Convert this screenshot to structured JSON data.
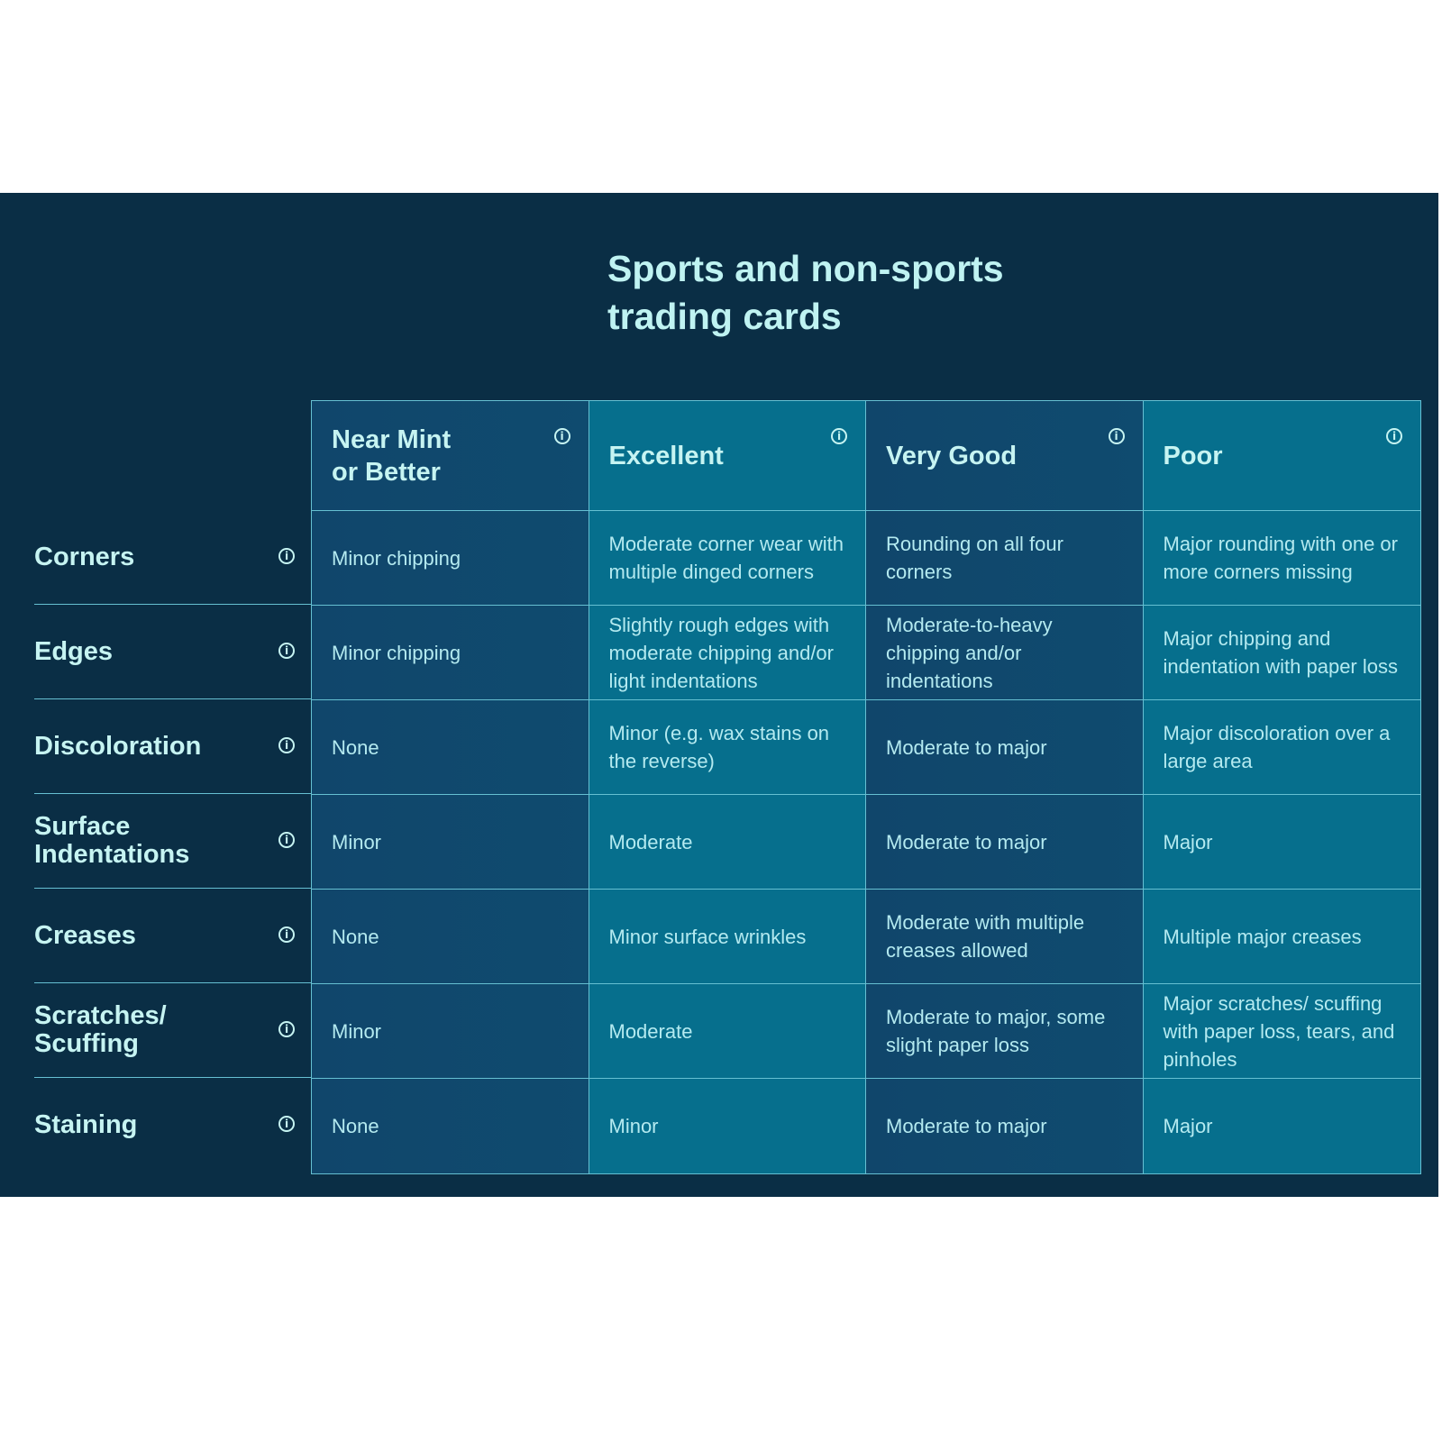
{
  "title_line1": "Sports and non-sports",
  "title_line2": "trading cards",
  "columns": [
    {
      "label": "Near Mint or Better",
      "icon": "info-icon"
    },
    {
      "label": "Excellent",
      "icon": "info-icon"
    },
    {
      "label": "Very Good",
      "icon": "info-icon"
    },
    {
      "label": "Poor",
      "icon": "info-icon"
    }
  ],
  "rows": [
    {
      "label": "Corners",
      "cells": [
        "Minor chipping",
        "Moderate corner wear with multiple dinged corners",
        "Rounding on all four corners",
        "Major rounding with one or more corners missing"
      ]
    },
    {
      "label": "Edges",
      "cells": [
        "Minor chipping",
        "Slightly rough edges with moderate chipping and/or light indentations",
        "Moderate-to-heavy chipping and/or indentations",
        "Major chipping and indentation with paper loss"
      ]
    },
    {
      "label": "Discoloration",
      "cells": [
        "None",
        "Minor (e.g. wax stains on the reverse)",
        "Moderate to major",
        "Major discoloration over a large area"
      ]
    },
    {
      "label": "Surface Indentations",
      "cells": [
        "Minor",
        "Moderate",
        "Moderate to major",
        "Major"
      ]
    },
    {
      "label": "Creases",
      "cells": [
        "None",
        "Minor surface wrinkles",
        "Moderate with multiple creases allowed",
        "Multiple major creases"
      ]
    },
    {
      "label": "Scratches/ Scuffing",
      "cells": [
        "Minor",
        "Moderate",
        "Moderate to major, some slight paper loss",
        "Major scratches/ scuffing with paper loss, tears, and pinholes"
      ]
    },
    {
      "label": "Staining",
      "cells": [
        "None",
        "Minor",
        "Moderate to major",
        "Major"
      ]
    }
  ],
  "colors": {
    "panel": "#0a2e45",
    "col_dark": "#10466b",
    "col_teal": "#066f8d",
    "text": "#b4eaf0",
    "border": "#66c0d2"
  }
}
